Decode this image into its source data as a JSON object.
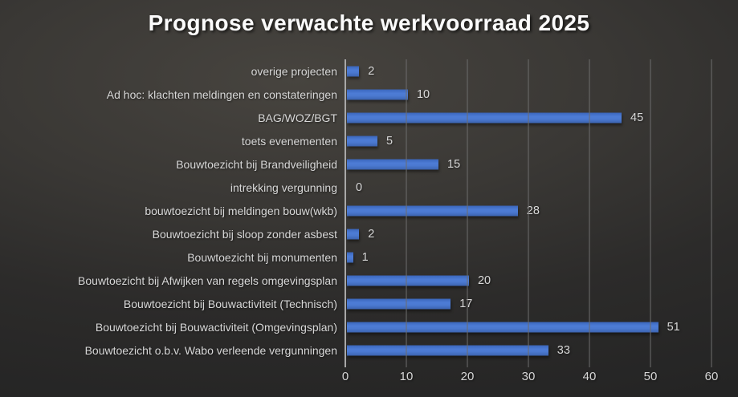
{
  "title": "Prognose verwachte werkvoorraad 2025",
  "chart_data": {
    "type": "bar",
    "orientation": "horizontal",
    "title": "Prognose verwachte werkvoorraad 2025",
    "categories": [
      "overige projecten",
      "Ad hoc: klachten meldingen en constateringen",
      "BAG/WOZ/BGT",
      "toets evenementen",
      "Bouwtoezicht bij Brandveiligheid",
      "intrekking vergunning",
      "bouwtoezicht bij meldingen bouw(wkb)",
      "Bouwtoezicht bij sloop zonder asbest",
      "Bouwtoezicht bij monumenten",
      "Bouwtoezicht bij Afwijken van regels omgevingsplan",
      "Bouwtoezicht bij Bouwactiviteit (Technisch)",
      "Bouwtoezicht bij Bouwactiviteit (Omgevingsplan)",
      "Bouwtoezicht o.b.v. Wabo verleende vergunningen"
    ],
    "values": [
      2,
      10,
      45,
      5,
      15,
      0,
      28,
      2,
      1,
      20,
      17,
      51,
      33
    ],
    "x_ticks": [
      0,
      10,
      20,
      30,
      40,
      50,
      60
    ],
    "xlim": [
      0,
      60
    ],
    "xlabel": "",
    "ylabel": "",
    "grid": true,
    "data_labels": true,
    "legend": "none",
    "colors": {
      "bar": "#4472c4",
      "title": "#fbfbfb",
      "label": "#d8d8d8",
      "gridline": "#6d6d6d",
      "axis_line": "#a8a8a8",
      "background_center": "#47443f",
      "background_edge": "#242424"
    }
  }
}
